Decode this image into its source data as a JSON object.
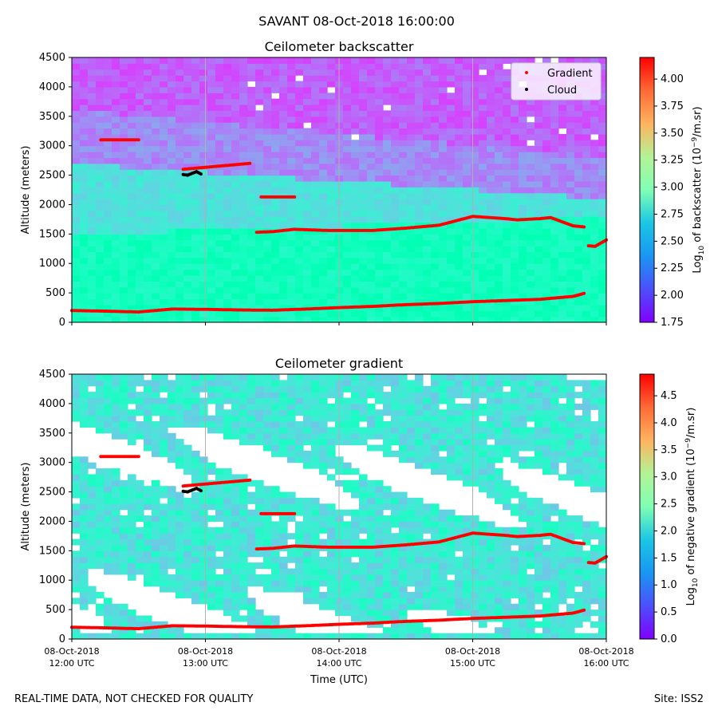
{
  "figure": {
    "suptitle": "SAVANT 08-Oct-2018 16:00:00",
    "footer_left": "REAL-TIME DATA, NOT CHECKED FOR QUALITY",
    "footer_right": "Site: ISS2"
  },
  "colors": {
    "gradient_points": "#ff0000",
    "cloud_points": "#000000",
    "gridlines": "#b0b0b0",
    "colormap": "rainbow"
  },
  "chart_data": [
    {
      "type": "heatmap",
      "title": "Ceilometer backscatter",
      "xlabel": "",
      "ylabel": "Altitude (meters)",
      "ylim": [
        0,
        4500
      ],
      "yticks": [
        "0",
        "500",
        "1000",
        "1500",
        "2000",
        "2500",
        "3000",
        "3500",
        "4000",
        "4500"
      ],
      "xlim": [
        "12:00",
        "16:00"
      ],
      "grid": "vertical at hourly ticks",
      "legend": {
        "placement": "top-right",
        "entries": [
          "Gradient",
          "Cloud"
        ]
      },
      "colorbar": {
        "label_prefix": "Log",
        "label_sub": "10",
        "label_mid": " of backscatter (10",
        "label_sup": "−9",
        "label_suffix": "/m.sr)",
        "range": [
          1.75,
          4.2
        ],
        "ticks": [
          "1.75",
          "2.00",
          "2.25",
          "2.50",
          "2.75",
          "3.00",
          "3.25",
          "3.50",
          "3.75",
          "4.00"
        ]
      },
      "field": {
        "low_layer_log_value": 2.9,
        "mid_layer_log_value": 2.6,
        "upper_layer_log_value": 2.2,
        "top_layer_log_value": 2.05
      },
      "series": [
        {
          "name": "Gradient",
          "segments": [
            {
              "x": [
                "12:00",
                "12:15",
                "12:30",
                "12:45",
                "13:00",
                "13:15",
                "13:30",
                "13:45",
                "14:00",
                "14:15",
                "14:30",
                "14:45",
                "15:00",
                "15:15",
                "15:30",
                "15:45",
                "15:50"
              ],
              "y": [
                200,
                190,
                175,
                225,
                220,
                210,
                205,
                225,
                250,
                270,
                300,
                320,
                350,
                370,
                390,
                440,
                490
              ]
            },
            {
              "x": [
                "12:13",
                "12:30"
              ],
              "y": [
                3100,
                3100
              ]
            },
            {
              "x": [
                "12:50",
                "13:05",
                "13:20"
              ],
              "y": [
                2600,
                2650,
                2700
              ]
            },
            {
              "x": [
                "13:25",
                "13:40"
              ],
              "y": [
                2130,
                2130
              ]
            },
            {
              "x": [
                "13:23",
                "13:30",
                "13:40",
                "13:55",
                "14:00",
                "14:15",
                "14:30",
                "14:45",
                "14:50",
                "15:00",
                "15:15",
                "15:20",
                "15:30",
                "15:35",
                "15:45",
                "15:50"
              ],
              "y": [
                1530,
                1540,
                1580,
                1560,
                1560,
                1560,
                1600,
                1650,
                1700,
                1800,
                1760,
                1740,
                1760,
                1780,
                1640,
                1620
              ]
            },
            {
              "x": [
                "15:52",
                "15:55",
                "16:00"
              ],
              "y": [
                1300,
                1290,
                1400
              ]
            }
          ]
        },
        {
          "name": "Cloud",
          "segments": [
            {
              "x": [
                "12:50",
                "12:52",
                "12:56",
                "12:58"
              ],
              "y": [
                2510,
                2500,
                2560,
                2520
              ]
            }
          ]
        }
      ]
    },
    {
      "type": "heatmap",
      "title": "Ceilometer gradient",
      "xlabel": "Time (UTC)",
      "ylabel": "Altitude (meters)",
      "ylim": [
        0,
        4500
      ],
      "yticks": [
        "0",
        "500",
        "1000",
        "1500",
        "2000",
        "2500",
        "3000",
        "3500",
        "4000",
        "4500"
      ],
      "xticks": [
        {
          "date": "08-Oct-2018",
          "time": "12:00 UTC"
        },
        {
          "date": "08-Oct-2018",
          "time": "13:00 UTC"
        },
        {
          "date": "08-Oct-2018",
          "time": "14:00 UTC"
        },
        {
          "date": "08-Oct-2018",
          "time": "15:00 UTC"
        },
        {
          "date": "08-Oct-2018",
          "time": "16:00 UTC"
        }
      ],
      "xlim": [
        "12:00",
        "16:00"
      ],
      "grid": "vertical at hourly ticks",
      "colorbar": {
        "label_prefix": "Log",
        "label_sub": "10",
        "label_mid": " of negative gradient (10",
        "label_sup": "−9",
        "label_suffix": "/m.sr)",
        "range": [
          0.0,
          4.9
        ],
        "ticks": [
          "0.0",
          "0.5",
          "1.0",
          "1.5",
          "2.0",
          "2.5",
          "3.0",
          "3.5",
          "4.0",
          "4.5"
        ]
      },
      "field": {
        "layer_log_value": 1.8,
        "gaps": "white regions where gradient is not negative"
      },
      "series": [
        {
          "name": "Gradient",
          "segments": [
            {
              "x": [
                "12:00",
                "12:15",
                "12:30",
                "12:45",
                "13:00",
                "13:15",
                "13:30",
                "13:45",
                "14:00",
                "14:15",
                "14:30",
                "14:45",
                "15:00",
                "15:15",
                "15:30",
                "15:45",
                "15:50"
              ],
              "y": [
                200,
                190,
                175,
                225,
                220,
                210,
                205,
                225,
                250,
                270,
                300,
                320,
                350,
                370,
                390,
                440,
                490
              ]
            },
            {
              "x": [
                "12:13",
                "12:30"
              ],
              "y": [
                3100,
                3100
              ]
            },
            {
              "x": [
                "12:50",
                "13:05",
                "13:20"
              ],
              "y": [
                2600,
                2650,
                2700
              ]
            },
            {
              "x": [
                "13:25",
                "13:40"
              ],
              "y": [
                2130,
                2130
              ]
            },
            {
              "x": [
                "13:23",
                "13:30",
                "13:40",
                "13:55",
                "14:00",
                "14:15",
                "14:30",
                "14:45",
                "14:50",
                "15:00",
                "15:15",
                "15:20",
                "15:30",
                "15:35",
                "15:45",
                "15:50"
              ],
              "y": [
                1530,
                1540,
                1580,
                1560,
                1560,
                1560,
                1600,
                1650,
                1700,
                1800,
                1760,
                1740,
                1760,
                1780,
                1640,
                1620
              ]
            },
            {
              "x": [
                "15:52",
                "15:55",
                "16:00"
              ],
              "y": [
                1300,
                1290,
                1400
              ]
            }
          ]
        },
        {
          "name": "Cloud",
          "segments": [
            {
              "x": [
                "12:50",
                "12:52",
                "12:56",
                "12:58"
              ],
              "y": [
                2510,
                2500,
                2560,
                2520
              ]
            }
          ]
        }
      ]
    }
  ]
}
